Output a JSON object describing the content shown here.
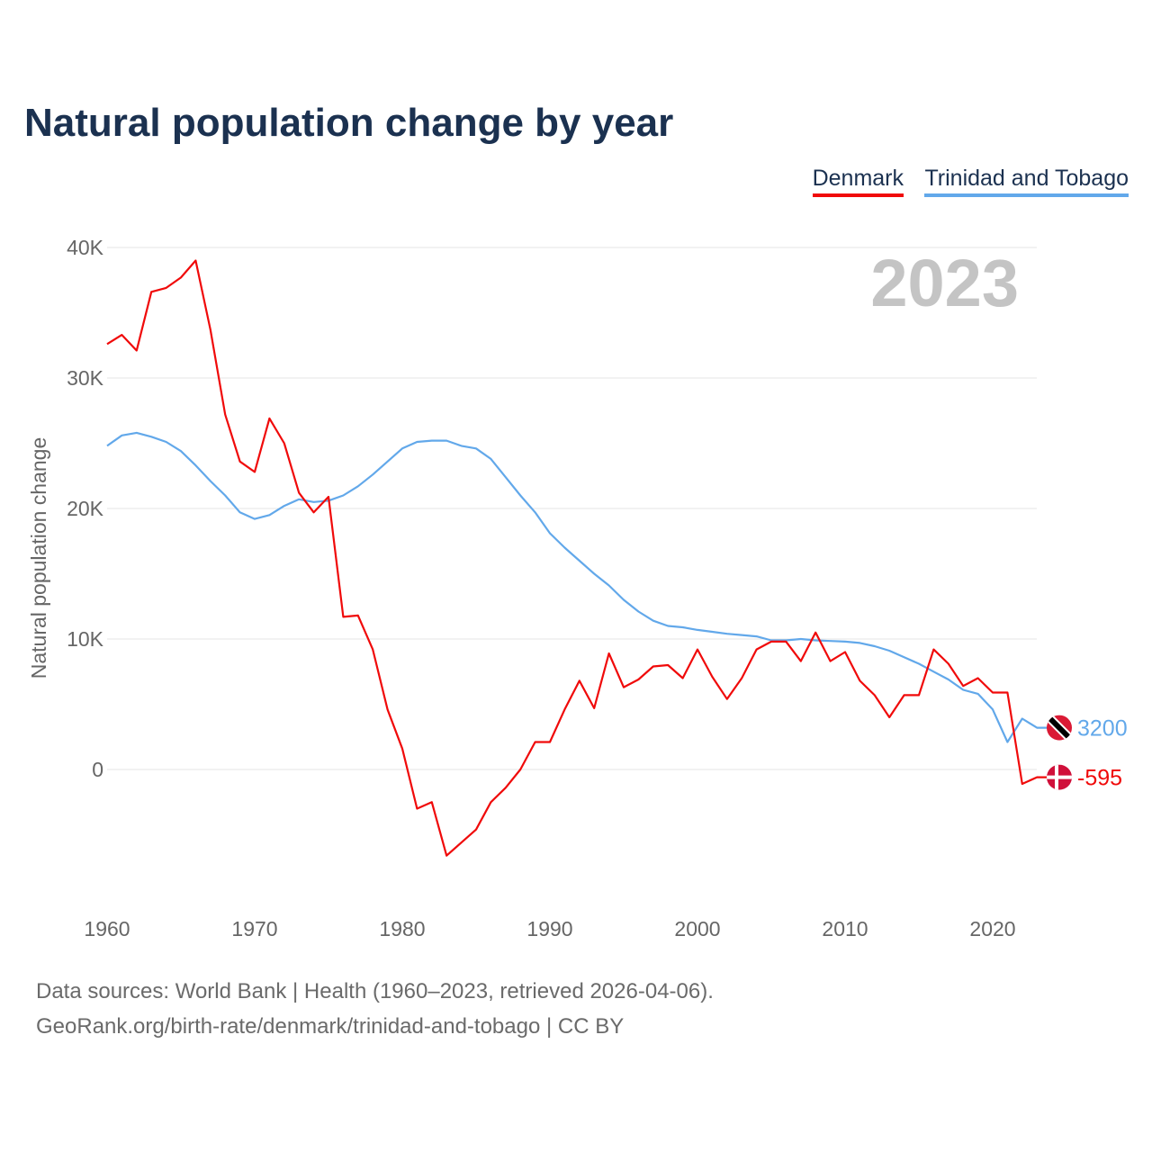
{
  "chart_data": {
    "type": "line",
    "title": "Natural population change by year",
    "ylabel": "Natural population change",
    "xlabel": "",
    "year_label": "2023",
    "ylim": [
      -10000,
      40000
    ],
    "xlim": [
      1960,
      2023
    ],
    "y_ticks": [
      0,
      10000,
      20000,
      30000,
      40000
    ],
    "y_tick_labels": [
      "0",
      "10K",
      "20K",
      "30K",
      "40K"
    ],
    "x_ticks": [
      1960,
      1970,
      1980,
      1990,
      2000,
      2010,
      2020
    ],
    "x_tick_labels": [
      "1960",
      "1970",
      "1980",
      "1990",
      "2000",
      "2010",
      "2020"
    ],
    "grid": true,
    "legend_position": "top-right",
    "start_year": 1960,
    "series": [
      {
        "name": "Denmark",
        "color": "#f00a0a",
        "end_label": "-595",
        "values": [
          32600,
          33300,
          32100,
          36600,
          36900,
          37700,
          39000,
          33700,
          27200,
          23600,
          22800,
          26900,
          25000,
          21200,
          19700,
          20900,
          11700,
          11800,
          9200,
          4600,
          1600,
          -3000,
          -2500,
          -6600,
          -5600,
          -4600,
          -2500,
          -1400,
          0,
          2100,
          2100,
          4600,
          6800,
          4700,
          8900,
          6300,
          6900,
          7900,
          8000,
          7000,
          9200,
          7100,
          5400,
          7000,
          9200,
          9800,
          9800,
          8300,
          10500,
          8300,
          9000,
          6800,
          5700,
          4000,
          5700,
          5700,
          9200,
          8100,
          6400,
          7000,
          5900,
          5900,
          -1100,
          -595
        ]
      },
      {
        "name": "Trinidad and Tobago",
        "color": "#62a8ea",
        "end_label": "3200",
        "values": [
          24800,
          25600,
          25800,
          25500,
          25100,
          24400,
          23300,
          22100,
          21000,
          19700,
          19200,
          19500,
          20200,
          20700,
          20500,
          20600,
          21000,
          21700,
          22600,
          23600,
          24600,
          25100,
          25200,
          25200,
          24800,
          24600,
          23800,
          22400,
          21000,
          19700,
          18100,
          17000,
          16000,
          15000,
          14100,
          13000,
          12100,
          11400,
          11000,
          10900,
          10700,
          10550,
          10400,
          10300,
          10200,
          9900,
          9900,
          10000,
          9900,
          9850,
          9800,
          9700,
          9450,
          9100,
          8600,
          8100,
          7500,
          6900,
          6100,
          5800,
          4600,
          2100,
          3900,
          3200
        ]
      }
    ]
  },
  "footer": {
    "line1": "Data sources: World Bank | Health (1960–2023, retrieved 2026-04-06).",
    "line2": "GeoRank.org/birth-rate/denmark/trinidad-and-tobago | CC BY"
  }
}
